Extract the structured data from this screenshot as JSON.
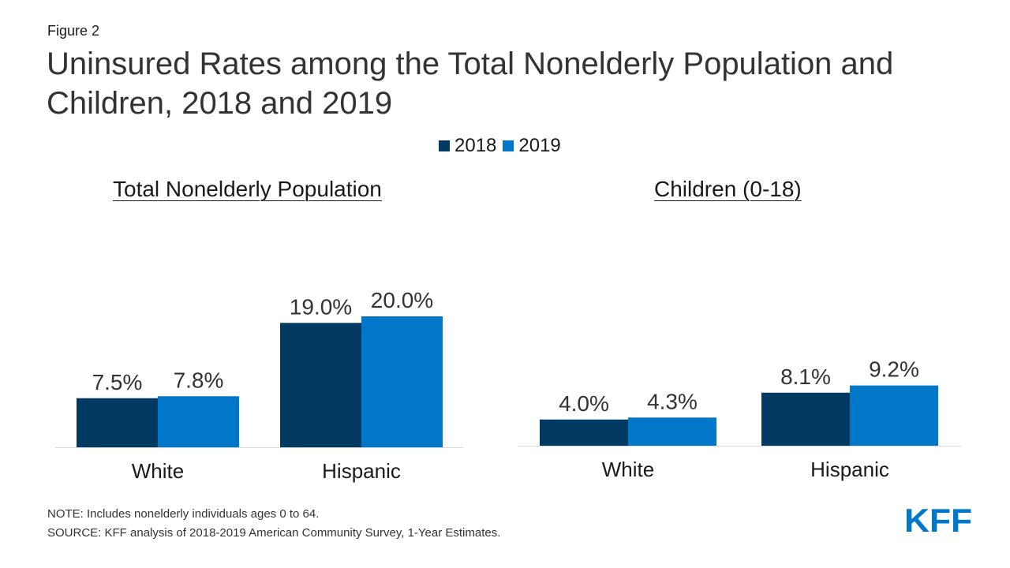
{
  "figure_label": "Figure 2",
  "title": "Uninsured Rates among the Total Nonelderly Population and Children, 2018 and 2019",
  "legend": [
    {
      "label": "2018",
      "color": "#003a63"
    },
    {
      "label": "2019",
      "color": "#0077c8"
    }
  ],
  "chart_data": [
    {
      "type": "bar",
      "title": "Total Nonelderly Population",
      "categories": [
        "White",
        "Hispanic"
      ],
      "series": [
        {
          "name": "2018",
          "values": [
            7.5,
            19.0
          ],
          "labels": [
            "7.5%",
            "19.0%"
          ],
          "color": "#003a63"
        },
        {
          "name": "2019",
          "values": [
            7.8,
            20.0
          ],
          "labels": [
            "7.8%",
            "20.0%"
          ],
          "color": "#0077c8"
        }
      ],
      "xlabel": "",
      "ylabel": "",
      "ylim": [
        0,
        20.0
      ],
      "grid": false,
      "legend": "top-center"
    },
    {
      "type": "bar",
      "title": "Children (0-18)",
      "categories": [
        "White",
        "Hispanic"
      ],
      "series": [
        {
          "name": "2018",
          "values": [
            4.0,
            8.1
          ],
          "labels": [
            "4.0%",
            "8.1%"
          ],
          "color": "#003a63"
        },
        {
          "name": "2019",
          "values": [
            4.3,
            9.2
          ],
          "labels": [
            "4.3%",
            "9.2%"
          ],
          "color": "#0077c8"
        }
      ],
      "xlabel": "",
      "ylabel": "",
      "ylim": [
        0,
        20.0
      ],
      "grid": false,
      "legend": "top-center"
    }
  ],
  "note": "NOTE: Includes nonelderly individuals ages 0 to 64.",
  "source": "SOURCE: KFF analysis of 2018-2019 American Community Survey, 1-Year Estimates.",
  "logo": {
    "text": "KFF",
    "color": "#0077c8"
  }
}
